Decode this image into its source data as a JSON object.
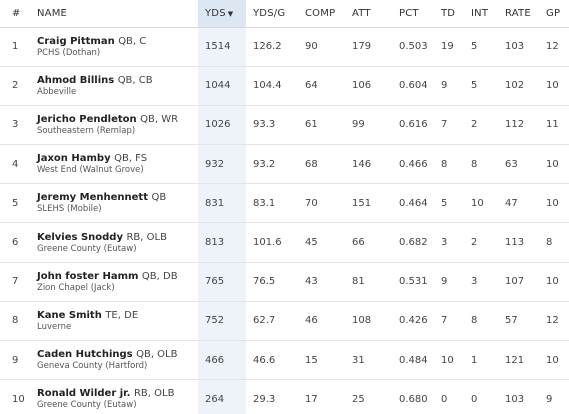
{
  "columns": {
    "rank": "#",
    "name": "NAME",
    "yds": "YDS",
    "yds_g": "YDS/G",
    "comp": "COMP",
    "att": "ATT",
    "pct": "PCT",
    "td": "TD",
    "int": "INT",
    "rate": "RATE",
    "gp": "GP"
  },
  "sort_indicator": "▼",
  "rows": [
    {
      "rank": "1",
      "name": "Craig Pittman",
      "pos": "QB, C",
      "school": "PCHS (Dothan)",
      "yds": "1514",
      "yds_g": "126.2",
      "comp": "90",
      "att": "179",
      "pct": "0.503",
      "td": "19",
      "int": "5",
      "rate": "103",
      "gp": "12"
    },
    {
      "rank": "2",
      "name": "Ahmod Billins",
      "pos": "QB, CB",
      "school": "Abbeville",
      "yds": "1044",
      "yds_g": "104.4",
      "comp": "64",
      "att": "106",
      "pct": "0.604",
      "td": "9",
      "int": "5",
      "rate": "102",
      "gp": "10"
    },
    {
      "rank": "3",
      "name": "Jericho Pendleton",
      "pos": "QB, WR",
      "school": "Southeastern (Remlap)",
      "yds": "1026",
      "yds_g": "93.3",
      "comp": "61",
      "att": "99",
      "pct": "0.616",
      "td": "7",
      "int": "2",
      "rate": "112",
      "gp": "11"
    },
    {
      "rank": "4",
      "name": "Jaxon Hamby",
      "pos": "QB, FS",
      "school": "West End (Walnut Grove)",
      "yds": "932",
      "yds_g": "93.2",
      "comp": "68",
      "att": "146",
      "pct": "0.466",
      "td": "8",
      "int": "8",
      "rate": "63",
      "gp": "10"
    },
    {
      "rank": "5",
      "name": "Jeremy Menhennett",
      "pos": "QB",
      "school": "SLEHS (Mobile)",
      "yds": "831",
      "yds_g": "83.1",
      "comp": "70",
      "att": "151",
      "pct": "0.464",
      "td": "5",
      "int": "10",
      "rate": "47",
      "gp": "10"
    },
    {
      "rank": "6",
      "name": "Kelvies Snoddy",
      "pos": "RB, OLB",
      "school": "Greene County (Eutaw)",
      "yds": "813",
      "yds_g": "101.6",
      "comp": "45",
      "att": "66",
      "pct": "0.682",
      "td": "3",
      "int": "2",
      "rate": "113",
      "gp": "8"
    },
    {
      "rank": "7",
      "name": "John foster Hamm",
      "pos": "QB, DB",
      "school": "Zion Chapel (Jack)",
      "yds": "765",
      "yds_g": "76.5",
      "comp": "43",
      "att": "81",
      "pct": "0.531",
      "td": "9",
      "int": "3",
      "rate": "107",
      "gp": "10"
    },
    {
      "rank": "8",
      "name": "Kane Smith",
      "pos": "TE, DE",
      "school": "Luverne",
      "yds": "752",
      "yds_g": "62.7",
      "comp": "46",
      "att": "108",
      "pct": "0.426",
      "td": "7",
      "int": "8",
      "rate": "57",
      "gp": "12"
    },
    {
      "rank": "9",
      "name": "Caden Hutchings",
      "pos": "QB, OLB",
      "school": "Geneva County (Hartford)",
      "yds": "466",
      "yds_g": "46.6",
      "comp": "15",
      "att": "31",
      "pct": "0.484",
      "td": "10",
      "int": "1",
      "rate": "121",
      "gp": "10"
    },
    {
      "rank": "10",
      "name": "Ronald Wilder jr.",
      "pos": "RB, OLB",
      "school": "Greene County (Eutaw)",
      "yds": "264",
      "yds_g": "29.3",
      "comp": "17",
      "att": "25",
      "pct": "0.680",
      "td": "0",
      "int": "0",
      "rate": "103",
      "gp": "9"
    }
  ]
}
